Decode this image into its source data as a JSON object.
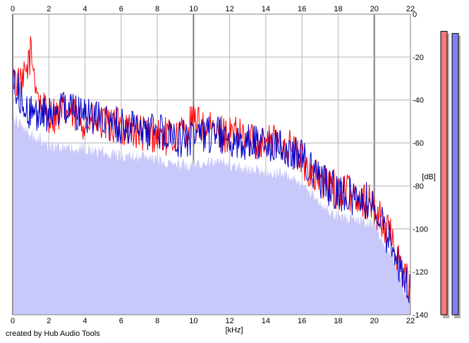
{
  "chart_data": {
    "type": "area",
    "xlabel": "[kHz]",
    "ylabel": "[dB]",
    "xlim": [
      0,
      22
    ],
    "ylim": [
      -140,
      0
    ],
    "x_ticks": [
      0,
      2,
      4,
      6,
      8,
      10,
      12,
      14,
      16,
      18,
      20,
      22
    ],
    "y_ticks": [
      0,
      -20,
      -40,
      -60,
      -80,
      -100,
      -120,
      -140
    ],
    "grid": true,
    "x_tick_positions": "top and bottom",
    "y_tick_position": "right",
    "series": [
      {
        "color": "#ff0000",
        "style": "line",
        "x": [
          0,
          0.5,
          1,
          1.5,
          2,
          3,
          4,
          5,
          6,
          7,
          8,
          9,
          10,
          11,
          12,
          13,
          14,
          15,
          16,
          17,
          18,
          19,
          20,
          20.5,
          21,
          21.5,
          22
        ],
        "values": [
          -28,
          -35,
          -18,
          -42,
          -47,
          -46,
          -50,
          -52,
          -52,
          -55,
          -56,
          -58,
          -50,
          -55,
          -56,
          -58,
          -60,
          -59,
          -68,
          -78,
          -82,
          -84,
          -90,
          -98,
          -105,
          -118,
          -128
        ]
      },
      {
        "color": "#0000cc",
        "style": "line",
        "x": [
          0,
          0.5,
          1,
          1.5,
          2,
          3,
          4,
          5,
          6,
          7,
          8,
          9,
          10,
          11,
          12,
          13,
          14,
          15,
          16,
          17,
          18,
          19,
          20,
          20.5,
          21,
          21.5,
          22
        ],
        "values": [
          -30,
          -40,
          -46,
          -45,
          -48,
          -44,
          -46,
          -50,
          -52,
          -55,
          -55,
          -58,
          -58,
          -56,
          -58,
          -60,
          -62,
          -62,
          -66,
          -78,
          -83,
          -86,
          -88,
          -100,
          -108,
          -120,
          -130
        ]
      },
      {
        "color": "#c8c8fa",
        "style": "fill",
        "x": [
          0,
          0.5,
          1,
          1.5,
          2,
          3,
          4,
          5,
          6,
          7,
          8,
          9,
          10,
          11,
          12,
          13,
          14,
          15,
          16,
          17,
          18,
          19,
          20,
          20.5,
          21,
          21.5,
          22
        ],
        "values": [
          -48,
          -52,
          -56,
          -58,
          -62,
          -62,
          -63,
          -64,
          -66,
          -66,
          -68,
          -70,
          -70,
          -68,
          -70,
          -72,
          -74,
          -74,
          -80,
          -88,
          -94,
          -96,
          -98,
          -106,
          -112,
          -125,
          -136
        ]
      }
    ],
    "level_meters": [
      {
        "color": "#ef7b7b",
        "level": -8,
        "unit": "dB"
      },
      {
        "color": "#8080f0",
        "level": -9,
        "unit": "dB"
      }
    ]
  },
  "footer": {
    "credit": "created by Hub Audio Tools"
  }
}
